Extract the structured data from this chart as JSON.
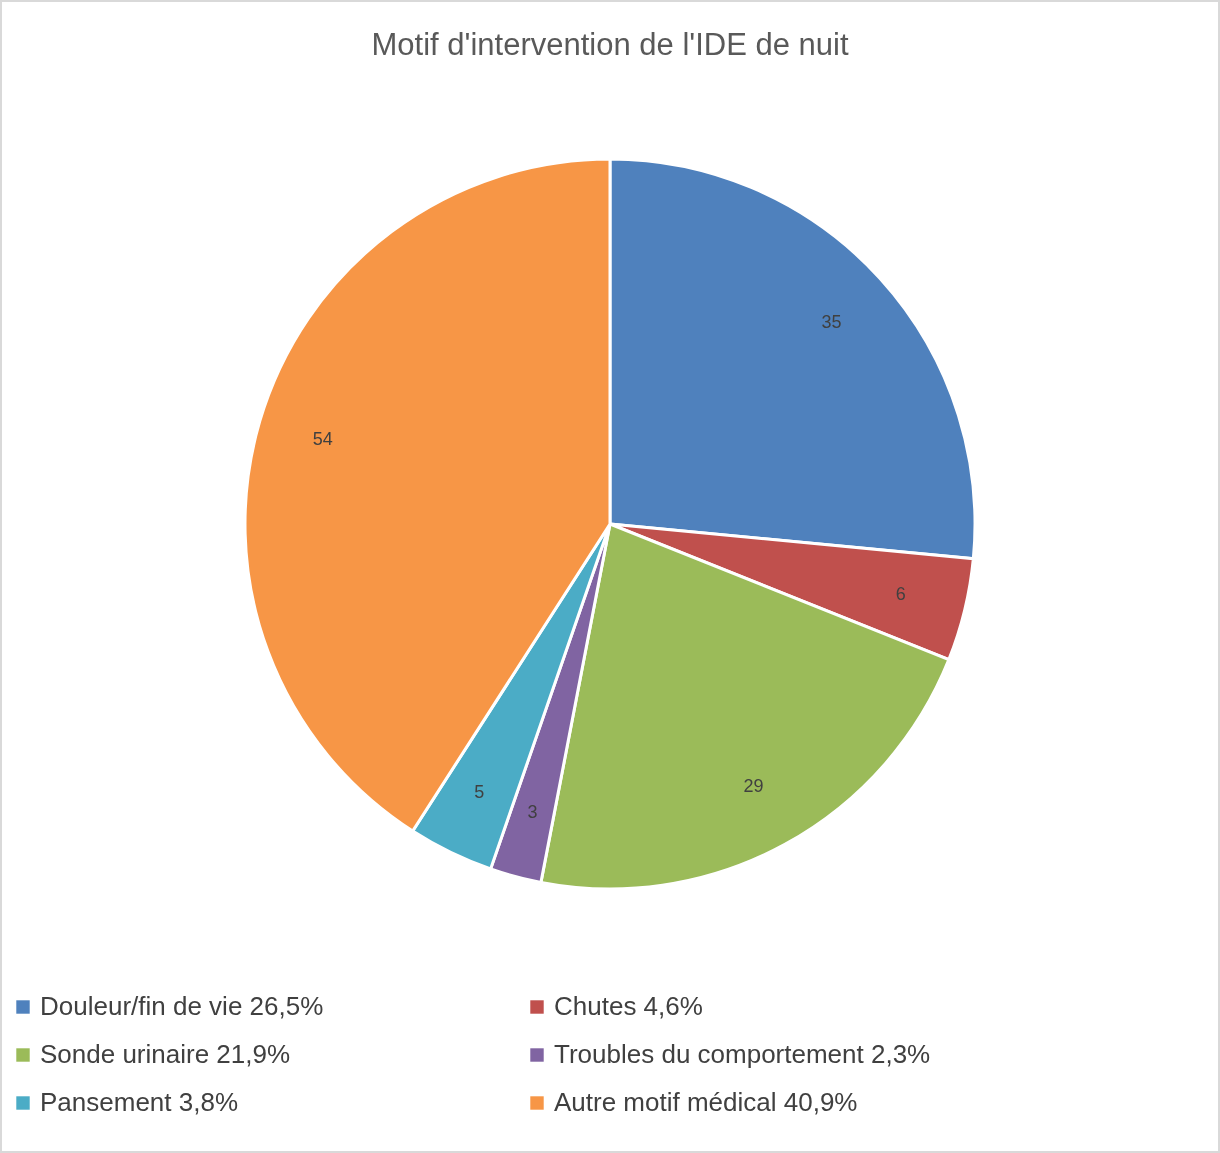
{
  "chart_data": {
    "type": "pie",
    "title": "Motif d'intervention de l'IDE de nuit",
    "categories": [
      "Douleur/fin de vie 26,5%",
      "Chutes 4,6%",
      "Sonde urinaire 21,9%",
      "Troubles du comportement 2,3%",
      "Pansement 3,8%",
      "Autre motif médical 40,9%"
    ],
    "values": [
      35,
      6,
      29,
      3,
      5,
      54
    ],
    "colors": [
      "#4f81bd",
      "#c0504d",
      "#9bbb59",
      "#8064a2",
      "#4bacc6",
      "#f79646"
    ],
    "data_labels": true,
    "legend": "bottom"
  }
}
